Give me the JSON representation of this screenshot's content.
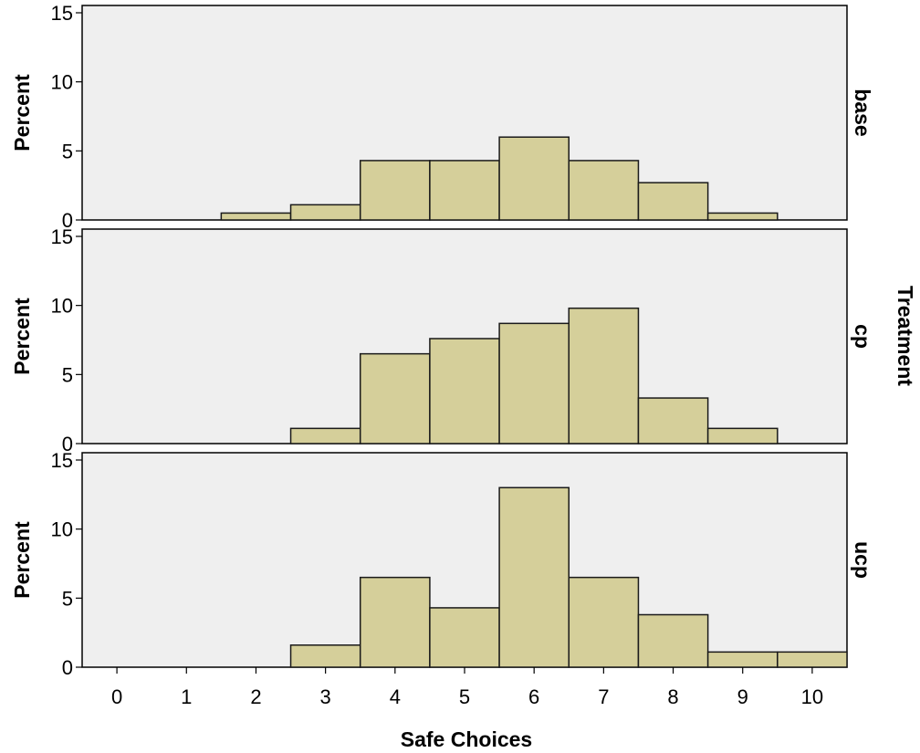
{
  "chart_data": {
    "type": "bar",
    "xlabel": "Safe Choices",
    "ylabel": "Percent",
    "facet_title": "Treatment",
    "x_ticks": [
      0,
      1,
      2,
      3,
      4,
      5,
      6,
      7,
      8,
      9,
      10
    ],
    "xlim": [
      -0.5,
      10.5
    ],
    "y_ticks": [
      0,
      5,
      10,
      15
    ],
    "ylim": [
      0,
      15
    ],
    "bin_width": 1,
    "bar_color": "#d5cf9a",
    "panel_bg": "#efefef",
    "grid": false,
    "panels": [
      {
        "label": "base",
        "x": [
          2,
          3,
          4,
          5,
          6,
          7,
          8,
          9
        ],
        "values": [
          0.5,
          1.1,
          4.3,
          4.3,
          6.0,
          4.3,
          2.7,
          0.5
        ]
      },
      {
        "label": "cp",
        "x": [
          3,
          4,
          5,
          6,
          7,
          8,
          9
        ],
        "values": [
          1.1,
          6.5,
          7.6,
          8.7,
          9.8,
          3.3,
          1.1
        ]
      },
      {
        "label": "ucp",
        "x": [
          3,
          4,
          5,
          6,
          7,
          8,
          9,
          10
        ],
        "values": [
          1.6,
          6.5,
          4.3,
          13.0,
          6.5,
          3.8,
          1.1,
          1.1
        ]
      }
    ]
  }
}
